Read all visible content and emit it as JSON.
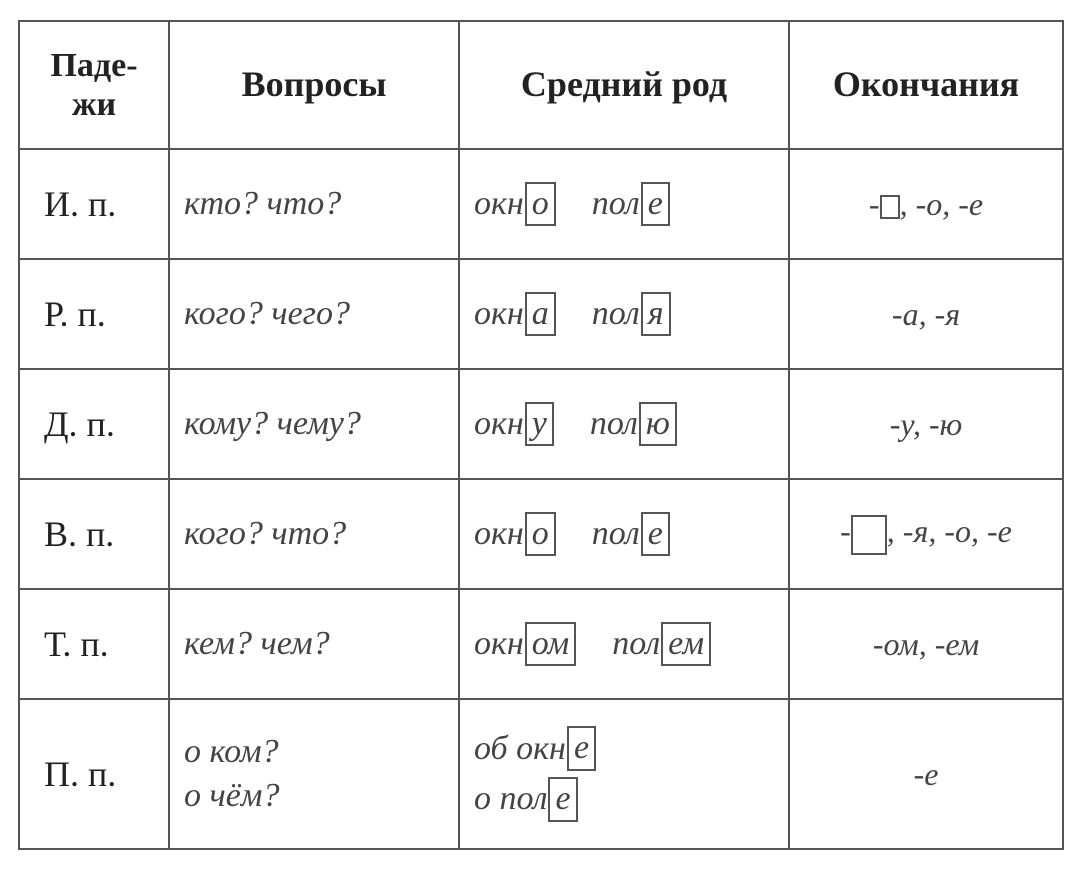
{
  "colors": {
    "border": "#555555",
    "text": "#222222",
    "italic_text": "#444444",
    "background": "#ffffff"
  },
  "typography": {
    "header_fontsize_pt": 27,
    "body_fontsize_pt": 26,
    "font_family": "serif"
  },
  "header": {
    "cases": "Паде-\nжи",
    "questions": "Вопросы",
    "gender": "Средний род",
    "endings": "Окончания"
  },
  "rows": [
    {
      "case": "И. п.",
      "question_lines": [
        "кто? что?"
      ],
      "example1": {
        "stem": "окн",
        "ending": "о"
      },
      "example2": {
        "stem": "пол",
        "ending": "е"
      },
      "endings": {
        "zero_box": "small",
        "suffixes": [
          "-о",
          "-е"
        ]
      }
    },
    {
      "case": "Р. п.",
      "question_lines": [
        "кого? чего?"
      ],
      "example1": {
        "stem": "окн",
        "ending": "а"
      },
      "example2": {
        "stem": "пол",
        "ending": "я"
      },
      "endings": {
        "suffixes": [
          "-а",
          "-я"
        ]
      }
    },
    {
      "case": "Д. п.",
      "question_lines": [
        "кому? чему?"
      ],
      "example1": {
        "stem": "окн",
        "ending": "у"
      },
      "example2": {
        "stem": "пол",
        "ending": "ю"
      },
      "endings": {
        "suffixes": [
          "-у",
          "-ю"
        ]
      }
    },
    {
      "case": "В. п.",
      "question_lines": [
        "кого? что?"
      ],
      "example1": {
        "stem": "окн",
        "ending": "о"
      },
      "example2": {
        "stem": "пол",
        "ending": "е"
      },
      "endings": {
        "zero_box": "big",
        "suffixes": [
          "-я",
          "-о",
          "-е"
        ]
      }
    },
    {
      "case": "Т. п.",
      "question_lines": [
        "кем? чем?"
      ],
      "example1": {
        "stem": "окн",
        "ending": "ом"
      },
      "example2": {
        "stem": "пол",
        "ending": "ем"
      },
      "endings": {
        "suffixes": [
          "-ом",
          "-ем"
        ]
      }
    },
    {
      "case": "П. п.",
      "tall": true,
      "question_lines": [
        "о ком?",
        "о чём?"
      ],
      "example1": {
        "prefix": "об ",
        "stem": "окн",
        "ending": "е"
      },
      "example2": {
        "prefix": "о ",
        "stem": "пол",
        "ending": "е"
      },
      "stack_examples": true,
      "endings": {
        "suffixes": [
          "-е"
        ]
      }
    }
  ]
}
